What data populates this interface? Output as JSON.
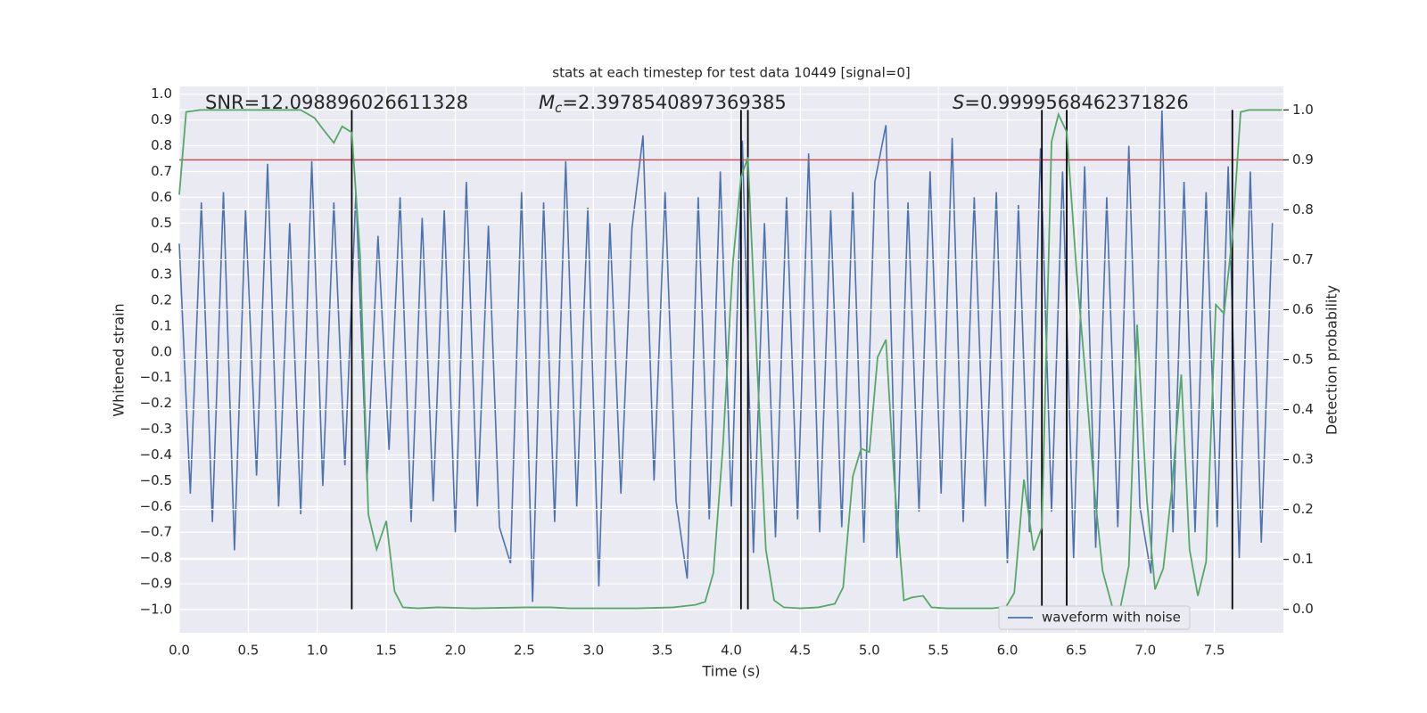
{
  "chart_data": {
    "type": "line",
    "title": "stats at each timestep for test data 10449 [signal=0]",
    "x_label": "Time (s)",
    "y_label": "Whitened strain",
    "y2_label": "Detection probability",
    "annotations": [
      {
        "text": "SNR=12.098896026611328"
      },
      {
        "symbol": "M",
        "subscript": "c",
        "text": "=2.3978540897369385"
      },
      {
        "symbol": "S",
        "text": "=0.9999568462371826"
      }
    ],
    "xlim": [
      0,
      8.0
    ],
    "ylim": [
      -1.09,
      1.03
    ],
    "y2lim": [
      -0.047,
      1.047
    ],
    "xticks": [
      {
        "value": 0,
        "label": "0.0"
      },
      {
        "value": 0.5,
        "label": "0.5"
      },
      {
        "value": 1,
        "label": "1.0"
      },
      {
        "value": 1.5,
        "label": "1.5"
      },
      {
        "value": 2,
        "label": "2.0"
      },
      {
        "value": 2.5,
        "label": "2.5"
      },
      {
        "value": 3,
        "label": "3.0"
      },
      {
        "value": 3.5,
        "label": "3.5"
      },
      {
        "value": 4,
        "label": "4.0"
      },
      {
        "value": 4.5,
        "label": "4.5"
      },
      {
        "value": 5,
        "label": "5.0"
      },
      {
        "value": 5.5,
        "label": "5.5"
      },
      {
        "value": 6,
        "label": "6.0"
      },
      {
        "value": 6.5,
        "label": "6.5"
      },
      {
        "value": 7,
        "label": "7.0"
      },
      {
        "value": 7.5,
        "label": "7.5"
      }
    ],
    "yticks": [
      {
        "value": 1,
        "label": "1.0"
      },
      {
        "value": 0.9,
        "label": "0.9"
      },
      {
        "value": 0.8,
        "label": "0.8"
      },
      {
        "value": 0.7,
        "label": "0.7"
      },
      {
        "value": 0.6,
        "label": "0.6"
      },
      {
        "value": 0.5,
        "label": "0.5"
      },
      {
        "value": 0.4,
        "label": "0.4"
      },
      {
        "value": 0.3,
        "label": "0.3"
      },
      {
        "value": 0.2,
        "label": "0.2"
      },
      {
        "value": 0.1,
        "label": "0.1"
      },
      {
        "value": 0,
        "label": "0.0"
      },
      {
        "value": -0.1,
        "label": "−0.1"
      },
      {
        "value": -0.2,
        "label": "−0.2"
      },
      {
        "value": -0.3,
        "label": "−0.3"
      },
      {
        "value": -0.4,
        "label": "−0.4"
      },
      {
        "value": -0.5,
        "label": "−0.5"
      },
      {
        "value": -0.6,
        "label": "−0.6"
      },
      {
        "value": -0.7,
        "label": "−0.7"
      },
      {
        "value": -0.8,
        "label": "−0.8"
      },
      {
        "value": -0.9,
        "label": "−0.9"
      },
      {
        "value": -1,
        "label": "−1.0"
      }
    ],
    "y2ticks": [
      {
        "value": 0,
        "label": "0.0"
      },
      {
        "value": 0.1,
        "label": "0.1"
      },
      {
        "value": 0.2,
        "label": "0.2"
      },
      {
        "value": 0.3,
        "label": "0.3"
      },
      {
        "value": 0.4,
        "label": "0.4"
      },
      {
        "value": 0.5,
        "label": "0.5"
      },
      {
        "value": 0.6,
        "label": "0.6"
      },
      {
        "value": 0.7,
        "label": "0.7"
      },
      {
        "value": 0.8,
        "label": "0.8"
      },
      {
        "value": 0.9,
        "label": "0.9"
      },
      {
        "value": 1,
        "label": "1.0"
      }
    ],
    "grid": true,
    "legend": "lower right",
    "series": [
      {
        "name": "waveform with noise",
        "color": "#4c72b0",
        "x": [
          0,
          0.08,
          0.16,
          0.24,
          0.32,
          0.4,
          0.48,
          0.56,
          0.64,
          0.72,
          0.8,
          0.88,
          0.96,
          1.04,
          1.12,
          1.2,
          1.28,
          1.36,
          1.44,
          1.52,
          1.6,
          1.68,
          1.76,
          1.84,
          1.92,
          2,
          2.08,
          2.16,
          2.24,
          2.32,
          2.4,
          2.48,
          2.56,
          2.64,
          2.72,
          2.8,
          2.88,
          2.96,
          3.04,
          3.12,
          3.2,
          3.28,
          3.36,
          3.44,
          3.52,
          3.6,
          3.68,
          3.76,
          3.84,
          3.92,
          4,
          4.08,
          4.16,
          4.24,
          4.32,
          4.4,
          4.48,
          4.56,
          4.64,
          4.72,
          4.8,
          4.88,
          4.96,
          5.04,
          5.12,
          5.2,
          5.28,
          5.36,
          5.44,
          5.52,
          5.6,
          5.68,
          5.76,
          5.84,
          5.92,
          6,
          6.08,
          6.16,
          6.24,
          6.32,
          6.4,
          6.48,
          6.56,
          6.64,
          6.72,
          6.8,
          6.88,
          6.96,
          7.04,
          7.12,
          7.2,
          7.28,
          7.36,
          7.44,
          7.52,
          7.6,
          7.68,
          7.76,
          7.84,
          7.92
        ],
        "values": [
          0.42,
          -0.55,
          0.58,
          -0.66,
          0.62,
          -0.77,
          0.55,
          -0.48,
          0.73,
          -0.6,
          0.5,
          -0.63,
          0.74,
          -0.52,
          0.58,
          -0.44,
          0.62,
          -0.5,
          0.45,
          -0.38,
          0.6,
          -0.66,
          0.52,
          -0.58,
          0.55,
          -0.7,
          0.66,
          -0.6,
          0.49,
          -0.68,
          -0.82,
          0.62,
          -0.97,
          0.58,
          -0.66,
          0.74,
          -0.6,
          0.56,
          -0.91,
          0.5,
          -0.55,
          0.48,
          0.84,
          -0.5,
          0.62,
          -0.58,
          -0.88,
          0.6,
          -0.65,
          0.7,
          -0.6,
          0.82,
          -0.78,
          0.5,
          -0.72,
          0.6,
          -0.65,
          0.77,
          -0.7,
          0.55,
          -0.68,
          0.62,
          -0.74,
          0.66,
          0.88,
          -0.8,
          0.58,
          -0.62,
          0.7,
          -0.55,
          0.83,
          -0.66,
          0.6,
          -0.6,
          0.62,
          -0.82,
          0.57,
          -0.7,
          0.79,
          -0.62,
          0.7,
          -0.8,
          0.72,
          -0.76,
          0.6,
          -0.68,
          0.8,
          -0.6,
          -0.86,
          0.94,
          -0.7,
          0.66,
          -0.7,
          0.62,
          -0.68,
          0.72,
          -0.8,
          0.7,
          -0.74,
          0.5
        ]
      },
      {
        "color": "#55a868",
        "axis": "y2",
        "x": [
          0,
          0.05,
          0.15,
          0.88,
          0.98,
          1.04,
          1.12,
          1.18,
          1.25,
          1.31,
          1.37,
          1.43,
          1.5,
          1.56,
          1.62,
          1.73,
          1.87,
          2.13,
          2.52,
          2.69,
          2.82,
          3.32,
          3.58,
          3.74,
          3.81,
          3.87,
          3.94,
          4.01,
          4.07,
          4.12,
          4.19,
          4.25,
          4.31,
          4.38,
          4.5,
          4.63,
          4.75,
          4.81,
          4.88,
          4.94,
          5,
          5.06,
          5.12,
          5.18,
          5.25,
          5.31,
          5.39,
          5.45,
          5.56,
          5.89,
          5.99,
          6.05,
          6.12,
          6.19,
          6.25,
          6.32,
          6.37,
          6.43,
          6.5,
          6.56,
          6.63,
          6.69,
          6.76,
          6.82,
          6.88,
          6.94,
          7.01,
          7.07,
          7.13,
          7.19,
          7.26,
          7.32,
          7.38,
          7.44,
          7.51,
          7.57,
          7.63,
          7.69,
          7.75,
          7.99
        ],
        "values": [
          0.83,
          0.996,
          1.0,
          1.0,
          0.984,
          0.962,
          0.934,
          0.967,
          0.955,
          0.71,
          0.19,
          0.12,
          0.177,
          0.036,
          0.004,
          0.002,
          0.004,
          0.002,
          0.004,
          0.004,
          0.002,
          0.002,
          0.004,
          0.009,
          0.015,
          0.073,
          0.33,
          0.69,
          0.865,
          0.905,
          0.47,
          0.12,
          0.018,
          0.004,
          0.002,
          0.004,
          0.011,
          0.044,
          0.266,
          0.322,
          0.315,
          0.505,
          0.54,
          0.26,
          0.018,
          0.024,
          0.027,
          0.004,
          0.002,
          0.002,
          0.005,
          0.033,
          0.26,
          0.118,
          0.164,
          0.936,
          0.991,
          0.956,
          0.683,
          0.486,
          0.24,
          0.077,
          0.005,
          0.005,
          0.087,
          0.57,
          0.222,
          0.04,
          0.082,
          0.237,
          0.47,
          0.12,
          0.027,
          0.095,
          0.61,
          0.592,
          0.747,
          0.996,
          1.0,
          1.0
        ]
      }
    ],
    "hline": {
      "y": 0.9,
      "axis": "y2",
      "color": "#c44e52"
    },
    "vlines": {
      "x": [
        1.25,
        4.07,
        4.12,
        6.25,
        6.43,
        7.63
      ],
      "ymin": 0,
      "ymax": 1,
      "axis": "y2",
      "color": "#000000"
    }
  }
}
